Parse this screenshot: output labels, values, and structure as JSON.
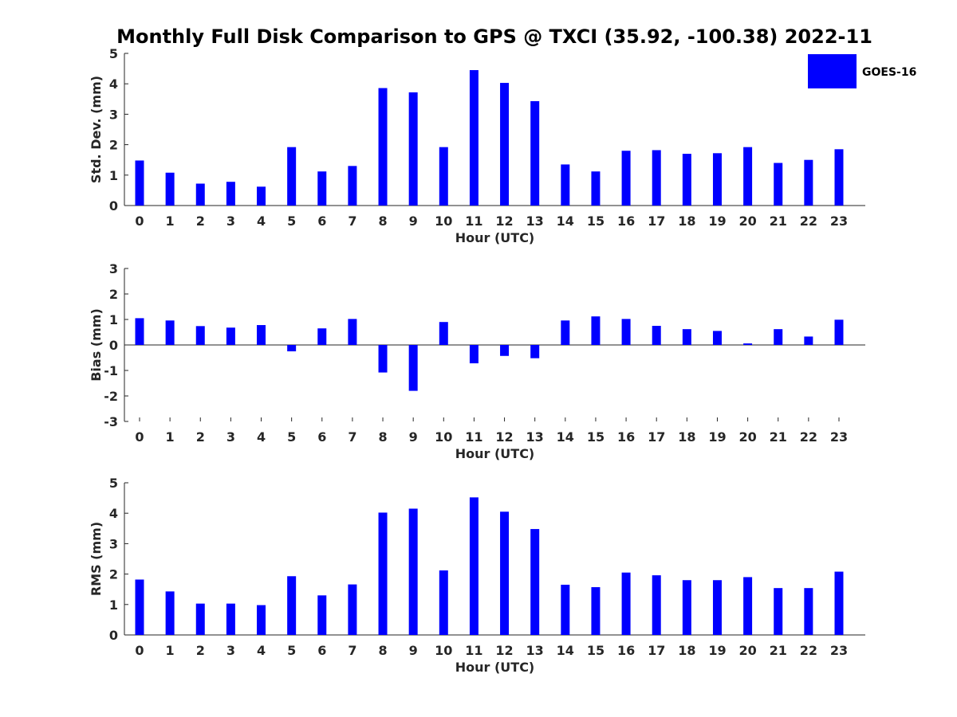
{
  "title": "Monthly Full Disk Comparison to GPS @ TXCI (35.92, -100.38) 2022-11",
  "legend": {
    "label": "GOES-16",
    "position": "top-right"
  },
  "colors": {
    "bar": "#0000ff",
    "axis": "#262626",
    "background": "#ffffff"
  },
  "chart_data": [
    {
      "type": "bar",
      "title": "Monthly Full Disk Comparison to GPS @ TXCI (35.92, -100.38) 2022-11",
      "xlabel": "Hour (UTC)",
      "ylabel": "Std. Dev. (mm)",
      "ylim": [
        0,
        5
      ],
      "yticks": [
        "0",
        "1",
        "2",
        "3",
        "4",
        "5"
      ],
      "categories": [
        "0",
        "1",
        "2",
        "3",
        "4",
        "5",
        "6",
        "7",
        "8",
        "9",
        "10",
        "11",
        "12",
        "13",
        "14",
        "15",
        "16",
        "17",
        "18",
        "19",
        "20",
        "21",
        "22",
        "23"
      ],
      "series": [
        {
          "name": "GOES-16",
          "values": [
            1.48,
            1.08,
            0.72,
            0.78,
            0.62,
            1.92,
            1.12,
            1.3,
            3.86,
            3.72,
            1.92,
            4.45,
            4.03,
            3.43,
            1.35,
            1.12,
            1.8,
            1.82,
            1.7,
            1.72,
            1.92,
            1.4,
            1.5,
            1.85
          ]
        }
      ],
      "grid": false
    },
    {
      "type": "bar",
      "xlabel": "Hour (UTC)",
      "ylabel": "Bias (mm)",
      "ylim": [
        -3,
        3
      ],
      "yticks": [
        "-3",
        "-2",
        "-1",
        "0",
        "1",
        "2",
        "3"
      ],
      "categories": [
        "0",
        "1",
        "2",
        "3",
        "4",
        "5",
        "6",
        "7",
        "8",
        "9",
        "10",
        "11",
        "12",
        "13",
        "14",
        "15",
        "16",
        "17",
        "18",
        "19",
        "20",
        "21",
        "22",
        "23"
      ],
      "series": [
        {
          "name": "GOES-16",
          "values": [
            1.05,
            0.96,
            0.74,
            0.68,
            0.78,
            -0.25,
            0.65,
            1.02,
            -1.08,
            -1.8,
            0.9,
            -0.72,
            -0.43,
            -0.52,
            0.96,
            1.12,
            1.02,
            0.75,
            0.62,
            0.55,
            0.06,
            0.62,
            0.33,
            0.99
          ]
        }
      ],
      "grid": false
    },
    {
      "type": "bar",
      "xlabel": "Hour (UTC)",
      "ylabel": "RMS (mm)",
      "ylim": [
        0,
        5
      ],
      "yticks": [
        "0",
        "1",
        "2",
        "3",
        "4",
        "5"
      ],
      "categories": [
        "0",
        "1",
        "2",
        "3",
        "4",
        "5",
        "6",
        "7",
        "8",
        "9",
        "10",
        "11",
        "12",
        "13",
        "14",
        "15",
        "16",
        "17",
        "18",
        "19",
        "20",
        "21",
        "22",
        "23"
      ],
      "series": [
        {
          "name": "GOES-16",
          "values": [
            1.82,
            1.43,
            1.03,
            1.03,
            0.98,
            1.93,
            1.3,
            1.66,
            4.02,
            4.15,
            2.12,
            4.52,
            4.05,
            3.48,
            1.65,
            1.57,
            2.05,
            1.96,
            1.8,
            1.8,
            1.9,
            1.54,
            1.54,
            2.08
          ]
        }
      ],
      "grid": false
    }
  ]
}
